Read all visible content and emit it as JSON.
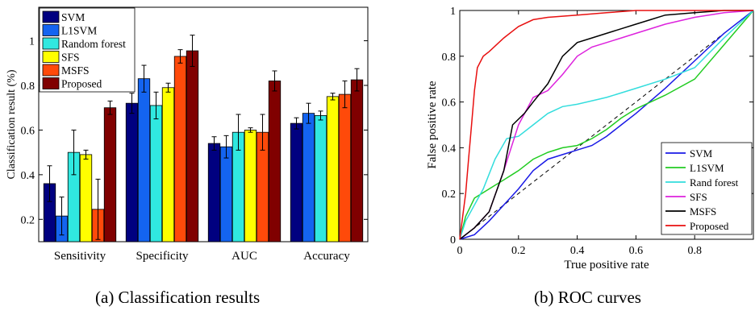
{
  "captions": {
    "a": "(a)  Classification results",
    "b": "(b)  ROC curves"
  },
  "chart_data": [
    {
      "type": "bar",
      "xlabel": "",
      "ylabel": "Classification result (%)",
      "ylim": [
        0.1,
        1.15
      ],
      "yticks": [
        "0.2",
        "0.4",
        "0.6",
        "0.8",
        "1"
      ],
      "categories": [
        "Sensitivity",
        "Specificity",
        "AUC",
        "Accuracy"
      ],
      "legend_position": "top-left",
      "series": [
        {
          "name": "SVM",
          "color": "#000080",
          "values": [
            0.36,
            0.72,
            0.54,
            0.63
          ],
          "errors": [
            0.08,
            0.045,
            0.03,
            0.025
          ]
        },
        {
          "name": "L1SVM",
          "color": "#1464f0",
          "values": [
            0.215,
            0.83,
            0.525,
            0.675
          ],
          "errors": [
            0.085,
            0.06,
            0.05,
            0.045
          ]
        },
        {
          "name": "Random forest",
          "color": "#30e8e0",
          "values": [
            0.5,
            0.71,
            0.59,
            0.665
          ],
          "errors": [
            0.1,
            0.06,
            0.08,
            0.02
          ]
        },
        {
          "name": "SFS",
          "color": "#ffff00",
          "values": [
            0.49,
            0.79,
            0.6,
            0.75
          ],
          "errors": [
            0.02,
            0.02,
            0.01,
            0.015
          ]
        },
        {
          "name": "MSFS",
          "color": "#ff4a0a",
          "values": [
            0.245,
            0.93,
            0.59,
            0.76
          ],
          "errors": [
            0.135,
            0.03,
            0.08,
            0.06
          ]
        },
        {
          "name": "Proposed",
          "color": "#800000",
          "values": [
            0.7,
            0.955,
            0.82,
            0.825
          ],
          "errors": [
            0.03,
            0.07,
            0.045,
            0.05
          ]
        }
      ]
    },
    {
      "type": "line",
      "xlabel": "True positive rate",
      "ylabel": "False positive rate",
      "xlim": [
        0,
        1
      ],
      "ylim": [
        0,
        1
      ],
      "xticks": [
        "0",
        "0.2",
        "0.4",
        "0.6",
        "0.8"
      ],
      "yticks": [
        "0",
        "0.2",
        "0.4",
        "0.6",
        "0.8",
        "1"
      ],
      "legend_position": "bottom-right",
      "reference_line": "diagonal dashed",
      "series": [
        {
          "name": "SVM",
          "color": "#1a1ae6",
          "x": [
            0,
            0.05,
            0.1,
            0.15,
            0.2,
            0.25,
            0.3,
            0.35,
            0.4,
            0.45,
            0.5,
            0.55,
            0.6,
            0.7,
            0.8,
            0.9,
            1.0
          ],
          "y": [
            0,
            0.02,
            0.08,
            0.15,
            0.22,
            0.3,
            0.35,
            0.37,
            0.39,
            0.41,
            0.45,
            0.5,
            0.55,
            0.66,
            0.78,
            0.9,
            1.0
          ]
        },
        {
          "name": "L1SVM",
          "color": "#22cc22",
          "x": [
            0,
            0.02,
            0.05,
            0.1,
            0.15,
            0.2,
            0.25,
            0.3,
            0.35,
            0.4,
            0.45,
            0.5,
            0.55,
            0.6,
            0.7,
            0.8,
            0.9,
            1.0
          ],
          "y": [
            0,
            0.1,
            0.18,
            0.22,
            0.26,
            0.3,
            0.35,
            0.38,
            0.4,
            0.41,
            0.44,
            0.48,
            0.53,
            0.57,
            0.63,
            0.7,
            0.85,
            1.0
          ]
        },
        {
          "name": "Rand forest",
          "color": "#33dddd",
          "x": [
            0,
            0.02,
            0.05,
            0.08,
            0.12,
            0.16,
            0.2,
            0.25,
            0.3,
            0.35,
            0.4,
            0.5,
            0.6,
            0.7,
            0.8,
            0.9,
            1.0
          ],
          "y": [
            0,
            0.08,
            0.15,
            0.22,
            0.35,
            0.44,
            0.45,
            0.5,
            0.55,
            0.58,
            0.59,
            0.62,
            0.66,
            0.7,
            0.75,
            0.88,
            1.0
          ]
        },
        {
          "name": "SFS",
          "color": "#dd22dd",
          "x": [
            0,
            0.05,
            0.1,
            0.15,
            0.2,
            0.25,
            0.3,
            0.35,
            0.4,
            0.45,
            0.5,
            0.55,
            0.6,
            0.7,
            0.8,
            0.9,
            1.0
          ],
          "y": [
            0,
            0.05,
            0.12,
            0.3,
            0.5,
            0.62,
            0.65,
            0.72,
            0.8,
            0.84,
            0.86,
            0.88,
            0.9,
            0.94,
            0.97,
            0.99,
            1.0
          ]
        },
        {
          "name": "MSFS",
          "color": "#000000",
          "x": [
            0,
            0.05,
            0.1,
            0.15,
            0.18,
            0.22,
            0.25,
            0.3,
            0.35,
            0.4,
            0.45,
            0.5,
            0.55,
            0.6,
            0.65,
            0.7,
            0.8,
            0.9,
            1.0
          ],
          "y": [
            0,
            0.05,
            0.12,
            0.3,
            0.5,
            0.55,
            0.6,
            0.68,
            0.8,
            0.86,
            0.88,
            0.9,
            0.92,
            0.94,
            0.96,
            0.98,
            0.99,
            1.0,
            1.0
          ]
        },
        {
          "name": "Proposed",
          "color": "#e81010",
          "x": [
            0,
            0.01,
            0.02,
            0.03,
            0.04,
            0.05,
            0.06,
            0.08,
            0.1,
            0.15,
            0.2,
            0.25,
            0.3,
            0.4,
            0.5,
            0.6,
            0.7,
            0.8,
            0.9,
            1.0
          ],
          "y": [
            0,
            0.1,
            0.2,
            0.35,
            0.5,
            0.65,
            0.75,
            0.8,
            0.82,
            0.88,
            0.93,
            0.96,
            0.97,
            0.98,
            0.99,
            1.0,
            1.0,
            1.0,
            1.0,
            1.0
          ]
        }
      ]
    }
  ]
}
